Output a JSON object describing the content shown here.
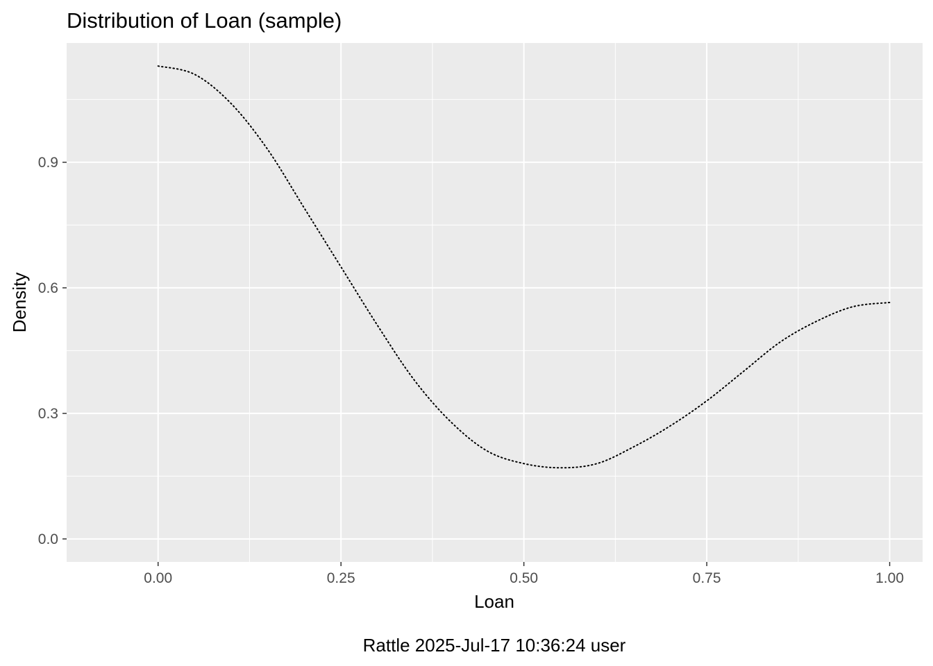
{
  "chart_data": {
    "type": "line",
    "title": "Distribution of Loan (sample)",
    "xlabel": "Loan",
    "ylabel": "Density",
    "caption": "Rattle 2025-Jul-17 10:36:24 user",
    "xlim": [
      -0.125,
      1.045
    ],
    "ylim": [
      -0.055,
      1.185
    ],
    "x_ticks": [
      0.0,
      0.25,
      0.5,
      0.75,
      1.0
    ],
    "x_tick_labels": [
      "0.00",
      "0.25",
      "0.50",
      "0.75",
      "1.00"
    ],
    "y_ticks": [
      0.0,
      0.3,
      0.6,
      0.9
    ],
    "y_tick_labels": [
      "0.0",
      "0.3",
      "0.6",
      "0.9"
    ],
    "grid": true,
    "panel_background": "#ebebeb",
    "grid_color": "#ffffff",
    "line_color": "#000000",
    "line_style": "dotted",
    "series": [
      {
        "x": [
          0.0,
          0.05,
          0.1,
          0.15,
          0.2,
          0.25,
          0.3,
          0.35,
          0.4,
          0.45,
          0.5,
          0.55,
          0.6,
          0.65,
          0.7,
          0.75,
          0.8,
          0.85,
          0.9,
          0.95,
          1.0
        ],
        "values": [
          1.13,
          1.11,
          1.04,
          0.93,
          0.79,
          0.65,
          0.51,
          0.38,
          0.28,
          0.21,
          0.18,
          0.17,
          0.18,
          0.22,
          0.27,
          0.33,
          0.4,
          0.47,
          0.52,
          0.555,
          0.565
        ]
      }
    ]
  }
}
